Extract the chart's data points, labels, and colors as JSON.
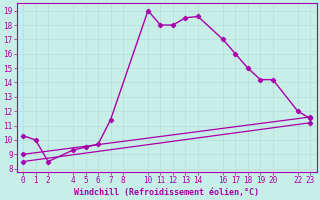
{
  "xlabel": "Windchill (Refroidissement éolien,°C)",
  "background_color": "#c8eee8",
  "grid_color": "#b8ddd8",
  "line_color": "#aa00aa",
  "line1_x": [
    0,
    1,
    2,
    4,
    5,
    6,
    7,
    10,
    11,
    12,
    13,
    14,
    16,
    17,
    18,
    19,
    20,
    22,
    23
  ],
  "line1_y": [
    10.3,
    10.0,
    8.5,
    9.3,
    9.5,
    9.7,
    11.4,
    19.0,
    18.0,
    18.0,
    18.5,
    18.6,
    17.0,
    16.0,
    15.0,
    14.2,
    14.2,
    12.0,
    11.5
  ],
  "line2_x": [
    0,
    23
  ],
  "line2_y": [
    9.0,
    11.6
  ],
  "line3_x": [
    0,
    23
  ],
  "line3_y": [
    8.5,
    11.2
  ],
  "ylim": [
    7.8,
    19.5
  ],
  "xlim": [
    -0.5,
    23.5
  ],
  "yticks": [
    8,
    9,
    10,
    11,
    12,
    13,
    14,
    15,
    16,
    17,
    18,
    19
  ],
  "xticks": [
    0,
    1,
    2,
    4,
    5,
    6,
    7,
    8,
    10,
    11,
    12,
    13,
    14,
    16,
    17,
    18,
    19,
    20,
    22,
    23
  ],
  "tick_fontsize": 5.5,
  "xlabel_fontsize": 6.0
}
